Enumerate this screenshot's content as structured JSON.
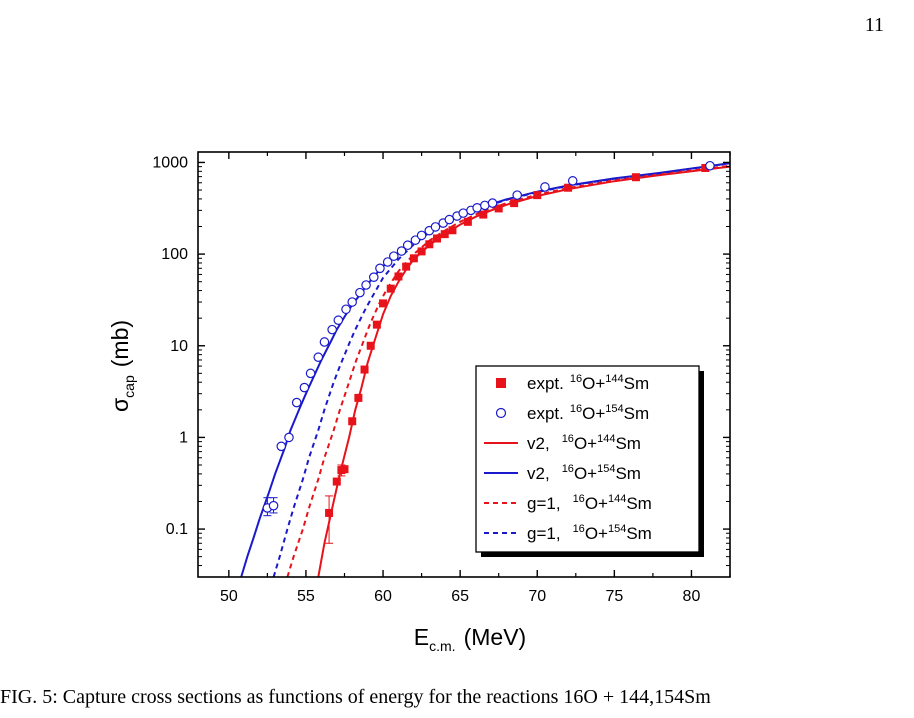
{
  "page": {
    "number": "11",
    "caption_fragment": "FIG. 5: Capture cross sections as functions of energy for the reactions 16O + 144,154Sm"
  },
  "chart_data": {
    "type": "scatter",
    "xlabel": {
      "main": "E",
      "sub": "c.m.",
      "unit": "(MeV)"
    },
    "ylabel": {
      "main": "σ",
      "sub": "cap",
      "unit": "(mb)"
    },
    "xlim": [
      48,
      82.5
    ],
    "ylim": [
      0.03,
      1300
    ],
    "yscale": "log",
    "x_ticks": [
      50,
      55,
      60,
      65,
      70,
      75,
      80
    ],
    "x_tick_labels": [
      "50",
      "55",
      "60",
      "65",
      "70",
      "75",
      "80"
    ],
    "y_ticks": [
      0.1,
      1,
      10,
      100,
      1000
    ],
    "y_tick_labels": [
      "0.1",
      "1",
      "10",
      "100",
      "1000"
    ],
    "grid": false,
    "legend_position": "bottom-right",
    "series": [
      {
        "kind": "points",
        "marker": "filled-square",
        "color": "#e8121a",
        "legend": {
          "prefix": "expt.",
          "reaction": [
            "16",
            "O+",
            "144",
            "Sm"
          ]
        },
        "points": [
          {
            "x": 56.5,
            "y": 0.15,
            "err": [
              0.07,
              0.23
            ]
          },
          {
            "x": 57.0,
            "y": 0.33
          },
          {
            "x": 57.3,
            "y": 0.44,
            "err": [
              0.38,
              0.5
            ]
          },
          {
            "x": 57.5,
            "y": 0.45
          },
          {
            "x": 58.0,
            "y": 1.5
          },
          {
            "x": 58.4,
            "y": 2.7
          },
          {
            "x": 58.8,
            "y": 5.5
          },
          {
            "x": 59.2,
            "y": 10
          },
          {
            "x": 59.6,
            "y": 17
          },
          {
            "x": 60.0,
            "y": 29
          },
          {
            "x": 60.5,
            "y": 42
          },
          {
            "x": 61.0,
            "y": 57
          },
          {
            "x": 61.5,
            "y": 73
          },
          {
            "x": 62.0,
            "y": 90
          },
          {
            "x": 62.5,
            "y": 107
          },
          {
            "x": 63.0,
            "y": 128
          },
          {
            "x": 63.5,
            "y": 148
          },
          {
            "x": 64.0,
            "y": 165
          },
          {
            "x": 64.5,
            "y": 182
          },
          {
            "x": 65.5,
            "y": 225
          },
          {
            "x": 66.5,
            "y": 270
          },
          {
            "x": 67.5,
            "y": 315
          },
          {
            "x": 68.5,
            "y": 360
          },
          {
            "x": 70.0,
            "y": 440
          },
          {
            "x": 72.0,
            "y": 530
          },
          {
            "x": 76.4,
            "y": 690
          },
          {
            "x": 80.9,
            "y": 870
          }
        ]
      },
      {
        "kind": "points",
        "marker": "open-circle",
        "color": "#1a1acc",
        "legend": {
          "prefix": "expt.",
          "reaction": [
            "16",
            "O+",
            "154",
            "Sm"
          ]
        },
        "points": [
          {
            "x": 52.5,
            "y": 0.17,
            "err": [
              0.14,
              0.22
            ]
          },
          {
            "x": 52.9,
            "y": 0.18,
            "err": [
              0.15,
              0.22
            ]
          },
          {
            "x": 53.4,
            "y": 0.8
          },
          {
            "x": 53.9,
            "y": 1.0
          },
          {
            "x": 54.4,
            "y": 2.4
          },
          {
            "x": 54.9,
            "y": 3.5
          },
          {
            "x": 55.3,
            "y": 5.0
          },
          {
            "x": 55.8,
            "y": 7.5
          },
          {
            "x": 56.2,
            "y": 11
          },
          {
            "x": 56.7,
            "y": 15
          },
          {
            "x": 57.1,
            "y": 19
          },
          {
            "x": 57.6,
            "y": 25
          },
          {
            "x": 58.0,
            "y": 30
          },
          {
            "x": 58.5,
            "y": 38
          },
          {
            "x": 58.9,
            "y": 46
          },
          {
            "x": 59.4,
            "y": 56
          },
          {
            "x": 59.8,
            "y": 70
          },
          {
            "x": 60.3,
            "y": 82
          },
          {
            "x": 60.7,
            "y": 95
          },
          {
            "x": 61.2,
            "y": 108
          },
          {
            "x": 61.6,
            "y": 125
          },
          {
            "x": 62.1,
            "y": 142
          },
          {
            "x": 62.5,
            "y": 160
          },
          {
            "x": 63.0,
            "y": 180
          },
          {
            "x": 63.4,
            "y": 198
          },
          {
            "x": 63.9,
            "y": 218
          },
          {
            "x": 64.3,
            "y": 238
          },
          {
            "x": 64.8,
            "y": 260
          },
          {
            "x": 65.2,
            "y": 280
          },
          {
            "x": 65.7,
            "y": 300
          },
          {
            "x": 66.1,
            "y": 320
          },
          {
            "x": 66.6,
            "y": 340
          },
          {
            "x": 67.1,
            "y": 360
          },
          {
            "x": 68.7,
            "y": 440
          },
          {
            "x": 70.5,
            "y": 540
          },
          {
            "x": 72.3,
            "y": 630
          },
          {
            "x": 81.2,
            "y": 920
          }
        ]
      },
      {
        "kind": "line",
        "dash": "solid",
        "color": "#e8121a",
        "legend": {
          "prefix": "v2,",
          "reaction": [
            "16",
            "O+",
            "144",
            "Sm"
          ]
        },
        "x": [
          55.8,
          56.2,
          56.8,
          57.2,
          57.8,
          58.2,
          58.6,
          59.0,
          59.5,
          60.0,
          60.5,
          61.0,
          61.5,
          62.0,
          63.0,
          64.0,
          65.0,
          66.0,
          67.0,
          68.0,
          70.0,
          72.0,
          75.0,
          78.0,
          82.5
        ],
        "y": [
          0.03,
          0.07,
          0.2,
          0.4,
          1.0,
          2.0,
          3.5,
          6.5,
          12,
          22,
          35,
          50,
          68,
          88,
          125,
          165,
          210,
          255,
          300,
          345,
          430,
          510,
          625,
          730,
          900
        ]
      },
      {
        "kind": "line",
        "dash": "solid",
        "color": "#1a1acc",
        "legend": {
          "prefix": "v2,",
          "reaction": [
            "16",
            "O+",
            "154",
            "Sm"
          ]
        },
        "x": [
          50.8,
          51.2,
          51.6,
          52.0,
          52.6,
          53.0,
          53.6,
          54.0,
          54.6,
          55.0,
          55.6,
          56.0,
          56.6,
          57.0,
          57.6,
          58.0,
          58.6,
          59.0,
          59.6,
          60.0,
          61.0,
          62.0,
          63.0,
          64.0,
          65.0,
          66.0,
          67.0,
          68.0,
          70.0,
          72.0,
          75.0,
          78.0,
          82.5
        ],
        "y": [
          0.03,
          0.05,
          0.08,
          0.13,
          0.25,
          0.4,
          0.75,
          1.2,
          2.1,
          3.0,
          5.0,
          7.0,
          11,
          15,
          22,
          28,
          38,
          47,
          62,
          74,
          105,
          142,
          185,
          228,
          270,
          310,
          350,
          395,
          480,
          560,
          670,
          770,
          980
        ]
      },
      {
        "kind": "line",
        "dash": "dashed",
        "color": "#e8121a",
        "legend": {
          "prefix": "g=1,",
          "reaction": [
            "16",
            "O+",
            "144",
            "Sm"
          ]
        },
        "x": [
          53.8,
          54.2,
          54.8,
          55.2,
          55.8,
          56.2,
          56.8,
          57.2,
          57.8,
          58.2,
          58.8,
          59.2,
          59.8,
          60.2,
          61.0,
          62.0,
          63.0,
          64.0,
          65.0,
          66.0,
          67.0,
          68.0,
          70.0,
          72.0,
          75.0,
          78.0,
          82.5
        ],
        "y": [
          0.03,
          0.05,
          0.1,
          0.17,
          0.35,
          0.6,
          1.2,
          2.0,
          4.0,
          6.5,
          12,
          18,
          30,
          40,
          65,
          100,
          140,
          180,
          225,
          270,
          315,
          360,
          445,
          525,
          640,
          745,
          920
        ]
      },
      {
        "kind": "line",
        "dash": "dashed",
        "color": "#1a1acc",
        "legend": {
          "prefix": "g=1,",
          "reaction": [
            "16",
            "O+",
            "154",
            "Sm"
          ]
        },
        "x": [
          52.9,
          53.3,
          53.8,
          54.2,
          54.8,
          55.2,
          55.8,
          56.2,
          56.8,
          57.2,
          57.8,
          58.2,
          58.8,
          59.2,
          60.0,
          61.0,
          62.0,
          63.0,
          64.0,
          65.0,
          66.0,
          67.0,
          68.0,
          70.0,
          72.0,
          75.0,
          78.0,
          82.5
        ],
        "y": [
          0.03,
          0.05,
          0.1,
          0.17,
          0.35,
          0.6,
          1.2,
          2.0,
          4.0,
          6.0,
          10.5,
          15,
          24,
          32,
          55,
          88,
          128,
          172,
          218,
          262,
          305,
          345,
          390,
          475,
          555,
          665,
          765,
          980
        ]
      }
    ]
  }
}
